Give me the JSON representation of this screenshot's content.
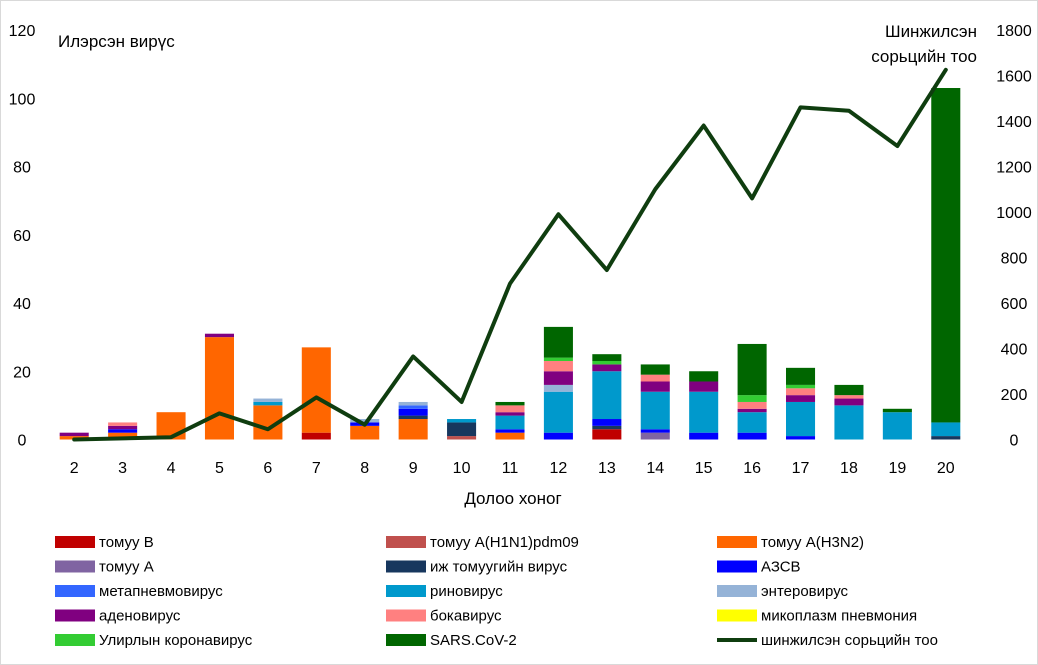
{
  "chart_data": {
    "type": "bar",
    "stacked": true,
    "title": "",
    "xlabel": "Долоо хоног",
    "ylabel": "Илэрсэн вирүс",
    "y2label_lines": [
      "Шинжилсэн",
      "сорьцийн тоо"
    ],
    "ylim": [
      0,
      120
    ],
    "y2lim": [
      0,
      1800
    ],
    "yticks": [
      0,
      20,
      40,
      60,
      80,
      100,
      120
    ],
    "y2ticks": [
      0,
      200,
      400,
      600,
      800,
      1000,
      1200,
      1400,
      1600,
      1800
    ],
    "grid": false,
    "legend_position": "bottom",
    "categories": [
      "2",
      "3",
      "4",
      "5",
      "6",
      "7",
      "8",
      "9",
      "10",
      "11",
      "12",
      "13",
      "14",
      "15",
      "16",
      "17",
      "18",
      "19",
      "20"
    ],
    "series": [
      {
        "name": "томуу В",
        "color": "#c00000",
        "values": [
          0,
          0,
          0,
          0,
          0,
          2,
          0,
          0,
          0,
          0,
          0,
          3,
          0,
          0,
          0,
          0,
          0,
          0,
          0
        ]
      },
      {
        "name": "томуу A(H1N1)pdm09",
        "color": "#c0504d",
        "values": [
          0,
          0,
          0,
          0,
          0,
          0,
          0,
          0,
          1,
          0,
          0,
          0,
          0,
          0,
          0,
          0,
          0,
          0,
          0
        ]
      },
      {
        "name": "томуу A(H3N2)",
        "color": "#ff6600",
        "values": [
          1,
          2,
          8,
          30,
          10,
          25,
          4,
          6,
          0,
          2,
          0,
          0,
          0,
          0,
          0,
          0,
          0,
          0,
          0
        ]
      },
      {
        "name": "томуу A",
        "color": "#8064a2",
        "values": [
          0,
          0,
          0,
          0,
          0,
          0,
          0,
          0,
          0,
          0,
          0,
          0,
          2,
          0,
          0,
          0,
          0,
          0,
          0
        ]
      },
      {
        "name": "иж томуугийн вирус",
        "color": "#17375e",
        "values": [
          0,
          0,
          0,
          0,
          0,
          0,
          0,
          1,
          4,
          0,
          0,
          1,
          0,
          0,
          0,
          0,
          0,
          0,
          1
        ]
      },
      {
        "name": "АЗСВ",
        "color": "#0000ff",
        "values": [
          0,
          1,
          0,
          0,
          0,
          0,
          1,
          2,
          0,
          1,
          2,
          2,
          1,
          2,
          2,
          1,
          0,
          0,
          0
        ]
      },
      {
        "name": "метапневмовирус",
        "color": "#3366ff",
        "values": [
          0,
          0,
          0,
          0,
          0,
          0,
          0,
          1,
          0,
          0,
          0,
          0,
          0,
          0,
          0,
          0,
          0,
          0,
          0
        ]
      },
      {
        "name": "риновирус",
        "color": "#0099cc",
        "values": [
          0,
          0,
          0,
          0,
          1,
          0,
          0,
          0,
          1,
          4,
          12,
          14,
          11,
          12,
          6,
          10,
          10,
          8,
          4
        ]
      },
      {
        "name": "энтеровирус",
        "color": "#95b3d7",
        "values": [
          0,
          0,
          0,
          0,
          1,
          0,
          1,
          1,
          0,
          0,
          2,
          0,
          0,
          0,
          0,
          0,
          0,
          0,
          0
        ]
      },
      {
        "name": "аденовирус",
        "color": "#800080",
        "values": [
          1,
          1,
          0,
          1,
          0,
          0,
          0,
          0,
          0,
          1,
          4,
          2,
          3,
          3,
          1,
          2,
          2,
          0,
          0
        ]
      },
      {
        "name": "бокавирус",
        "color": "#ff8080",
        "values": [
          0,
          1,
          0,
          0,
          0,
          0,
          0,
          0,
          0,
          2,
          3,
          0,
          2,
          0,
          2,
          2,
          1,
          0,
          0
        ]
      },
      {
        "name": "микоплазм пневмония",
        "color": "#ffff00",
        "values": [
          0,
          0,
          0,
          0,
          0,
          0,
          0,
          0,
          0,
          0,
          0,
          0,
          0,
          0,
          0,
          0,
          0,
          0,
          0
        ]
      },
      {
        "name": "Улирлын коронавирус",
        "color": "#33cc33",
        "values": [
          0,
          0,
          0,
          0,
          0,
          0,
          0,
          0,
          0,
          0,
          1,
          1,
          0,
          0,
          2,
          1,
          0,
          0,
          0
        ]
      },
      {
        "name": "SARS.CoV-2",
        "color": "#006600",
        "values": [
          0,
          0,
          0,
          0,
          0,
          0,
          0,
          0,
          0,
          1,
          9,
          2,
          3,
          3,
          15,
          5,
          3,
          1,
          98
        ]
      }
    ],
    "line_series": {
      "name": "шинжилсэн сорьцийн тоо",
      "color": "#0f3d0f",
      "axis": "right",
      "values": [
        0,
        5,
        10,
        115,
        45,
        185,
        65,
        365,
        165,
        685,
        990,
        745,
        1100,
        1380,
        1060,
        1460,
        1445,
        1290,
        1625
      ]
    }
  }
}
